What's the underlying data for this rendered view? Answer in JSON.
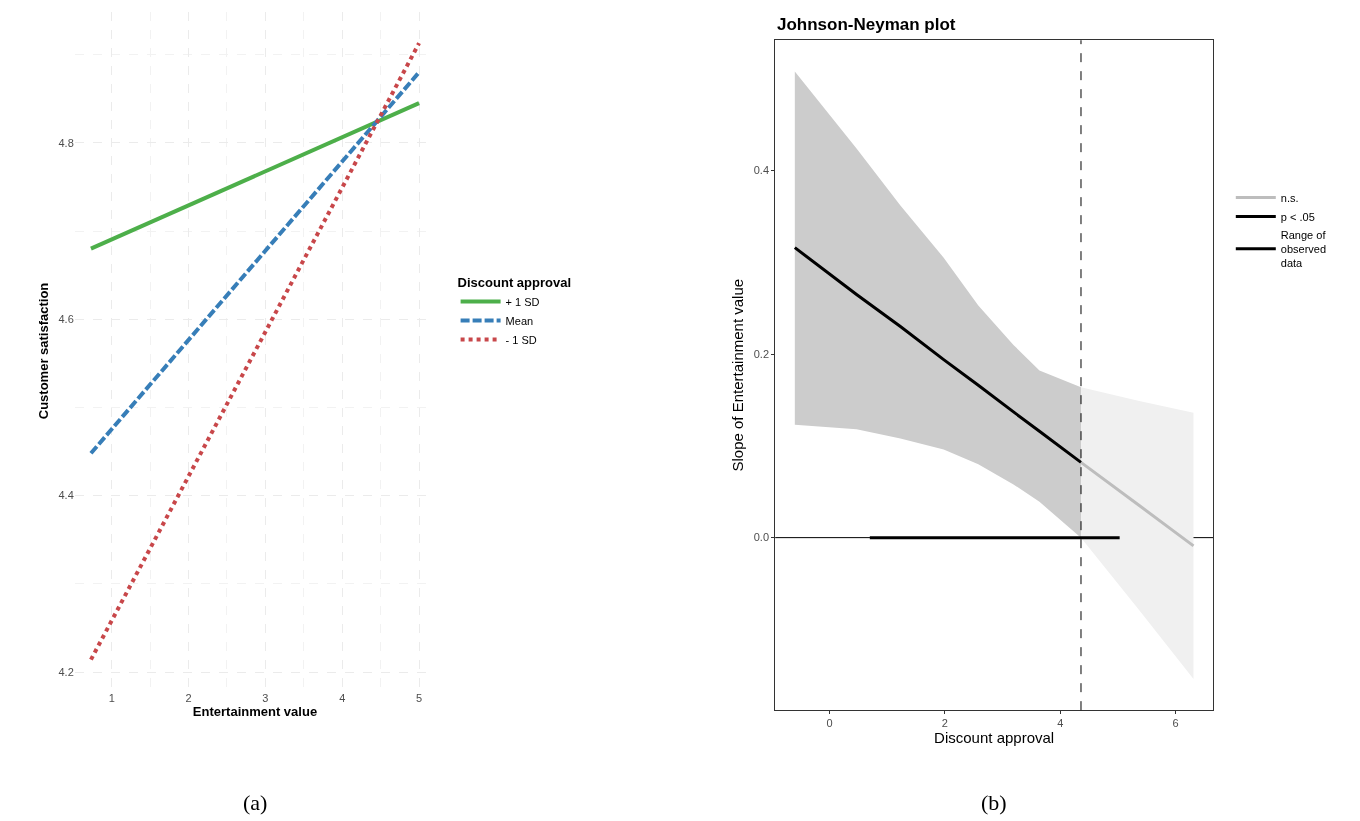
{
  "chart_data": [
    {
      "type": "line",
      "xlabel": "Entertainment value",
      "ylabel": "Customer satisfaction",
      "legend_title": "Discount approval",
      "series": [
        {
          "name": "+ 1 SD",
          "color": "#4daf4a",
          "x": [
            0.73,
            5
          ],
          "values": [
            4.68,
            4.845
          ],
          "line_style": "solid"
        },
        {
          "name": "Mean",
          "color": "#377eb8",
          "x": [
            0.73,
            5
          ],
          "values": [
            4.448,
            4.88
          ],
          "line_style": "dashed"
        },
        {
          "name": "- 1 SD",
          "color": "#c8474a",
          "x": [
            0.73,
            5
          ],
          "values": [
            4.214,
            4.913
          ],
          "line_style": "dotted"
        }
      ],
      "xlim": [
        0.52,
        5.21
      ],
      "ylim": [
        4.18,
        4.948
      ],
      "xticks": [
        1,
        2,
        3,
        4,
        5
      ],
      "yticks": [
        4.2,
        4.4,
        4.6,
        4.8
      ],
      "grid": true,
      "legend": "right",
      "annotations": [
        "(a)"
      ]
    },
    {
      "type": "line",
      "title": "Johnson-Neyman plot",
      "xlabel": "Discount approval",
      "ylabel": "Slope of Entertainment value",
      "series": [
        {
          "name": "n.s.",
          "color": "#bdbdbd",
          "x": [
            4.36,
            5.37,
            6.31
          ],
          "values": [
            0.082,
            0.035,
            -0.009
          ],
          "lower": [
            0,
            -0.079,
            -0.154
          ],
          "upper": [
            0.164,
            0.149,
            0.136
          ]
        },
        {
          "name": "p < .05",
          "color": "#000000",
          "x": [
            -0.6,
            0.47,
            1.23,
            1.98,
            2.58,
            3.19,
            3.64,
            4.36
          ],
          "values": [
            0.316,
            0.265,
            0.23,
            0.194,
            0.166,
            0.137,
            0.116,
            0.082
          ],
          "lower": [
            0.123,
            0.118,
            0.108,
            0.096,
            0.08,
            0.058,
            0.039,
            0
          ],
          "upper": [
            0.508,
            0.424,
            0.362,
            0.305,
            0.253,
            0.21,
            0.182,
            0.164
          ]
        },
        {
          "name": "Range of observed data",
          "type": "line",
          "color": "#000000",
          "x": [
            0.7,
            5.03
          ],
          "values": [
            0,
            0
          ]
        }
      ],
      "ref_lines": [
        {
          "axis": "y",
          "value": 0,
          "color": "#000000",
          "line_style": "solid"
        },
        {
          "axis": "x",
          "value": 4.36,
          "color": "#000000",
          "line_style": "dashed"
        }
      ],
      "xlim": [
        -0.94,
        6.65
      ],
      "ylim": [
        -0.188,
        0.542
      ],
      "xticks": [
        0,
        2,
        4,
        6
      ],
      "yticks": [
        {
          "value": 0,
          "label": "0.0"
        },
        0.2,
        0.4
      ],
      "grid": false,
      "legend": "right",
      "annotations": [
        "(b)"
      ]
    }
  ]
}
